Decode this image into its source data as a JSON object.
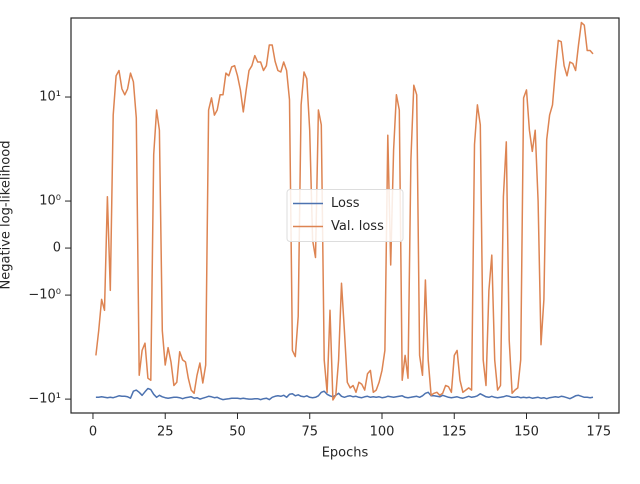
{
  "chart_data": {
    "type": "line",
    "xlabel": "Epochs",
    "ylabel": "Negative log-likelihood",
    "yscale": "symlog",
    "xlim": [
      -7.6,
      182
    ],
    "ylim": [
      -13.6,
      57.5
    ],
    "xticks": [
      0,
      25,
      50,
      75,
      100,
      125,
      150,
      175
    ],
    "yticks": [
      {
        "value": -10,
        "label": "−10¹"
      },
      {
        "value": -1,
        "label": "−10⁰"
      },
      0,
      {
        "value": 1,
        "label": "10⁰"
      },
      {
        "value": 10,
        "label": "10¹"
      }
    ],
    "legend": "center",
    "x": [
      1,
      2,
      3,
      4,
      5,
      6,
      7,
      8,
      9,
      10,
      11,
      12,
      13,
      14,
      15,
      16,
      17,
      18,
      19,
      20,
      21,
      22,
      23,
      24,
      25,
      26,
      27,
      28,
      29,
      30,
      31,
      32,
      33,
      34,
      35,
      36,
      37,
      38,
      39,
      40,
      41,
      42,
      43,
      44,
      45,
      46,
      47,
      48,
      49,
      50,
      51,
      52,
      53,
      54,
      55,
      56,
      57,
      58,
      59,
      60,
      61,
      62,
      63,
      64,
      65,
      66,
      67,
      68,
      69,
      70,
      71,
      72,
      73,
      74,
      75,
      76,
      77,
      78,
      79,
      80,
      81,
      82,
      83,
      84,
      85,
      86,
      87,
      88,
      89,
      90,
      91,
      92,
      93,
      94,
      95,
      96,
      97,
      98,
      99,
      100,
      101,
      102,
      103,
      104,
      105,
      106,
      107,
      108,
      109,
      110,
      111,
      112,
      113,
      114,
      115,
      116,
      117,
      118,
      119,
      120,
      121,
      122,
      123,
      124,
      125,
      126,
      127,
      128,
      129,
      130,
      131,
      132,
      133,
      134,
      135,
      136,
      137,
      138,
      139,
      140,
      141,
      142,
      143,
      144,
      145,
      146,
      147,
      148,
      149,
      150,
      151,
      152,
      153,
      154,
      155,
      156,
      157,
      158,
      159,
      160,
      161,
      162,
      163,
      164,
      165,
      166,
      167,
      168,
      169,
      170,
      171,
      172,
      173
    ],
    "series": [
      {
        "name": "Loss",
        "color": "#4c72b0",
        "values": [
          -9.6,
          -9.6,
          -9.5,
          -9.6,
          -9.7,
          -9.6,
          -9.7,
          -9.5,
          -9.3,
          -9.4,
          -9.4,
          -9.5,
          -9.8,
          -8.4,
          -8.2,
          -8.6,
          -9.2,
          -8.5,
          -7.9,
          -8.1,
          -9.0,
          -9.6,
          -9.2,
          -9.5,
          -9.7,
          -9.8,
          -9.7,
          -9.6,
          -9.6,
          -9.7,
          -9.9,
          -9.7,
          -9.6,
          -9.5,
          -9.8,
          -9.7,
          -10.0,
          -9.8,
          -9.6,
          -9.4,
          -9.5,
          -9.7,
          -9.6,
          -9.9,
          -10.1,
          -10.0,
          -9.9,
          -9.8,
          -9.8,
          -9.8,
          -9.9,
          -9.8,
          -9.9,
          -10.0,
          -10.0,
          -9.9,
          -9.9,
          -10.1,
          -9.9,
          -9.8,
          -10.1,
          -9.6,
          -9.4,
          -9.3,
          -9.4,
          -9.2,
          -9.6,
          -9.0,
          -8.9,
          -9.3,
          -9.1,
          -9.4,
          -9.5,
          -9.3,
          -9.6,
          -9.7,
          -9.6,
          -9.3,
          -8.6,
          -8.4,
          -9.0,
          -9.3,
          -9.5,
          -9.2,
          -8.8,
          -9.4,
          -9.6,
          -9.4,
          -9.3,
          -9.5,
          -9.4,
          -9.6,
          -9.7,
          -9.5,
          -9.4,
          -9.6,
          -9.5,
          -9.6,
          -9.5,
          -9.7,
          -9.6,
          -9.4,
          -9.5,
          -9.6,
          -9.5,
          -9.4,
          -9.3,
          -9.6,
          -9.7,
          -9.6,
          -9.5,
          -9.4,
          -9.6,
          -9.3,
          -8.8,
          -8.6,
          -9.3,
          -9.3,
          -9.4,
          -9.5,
          -9.2,
          -9.4,
          -9.6,
          -9.7,
          -9.6,
          -9.5,
          -9.7,
          -9.8,
          -9.6,
          -9.4,
          -9.6,
          -9.5,
          -9.3,
          -8.9,
          -9.2,
          -9.5,
          -9.6,
          -9.4,
          -9.6,
          -9.7,
          -9.6,
          -9.5,
          -9.3,
          -9.4,
          -9.6,
          -9.6,
          -9.5,
          -9.7,
          -9.6,
          -9.7,
          -9.6,
          -9.8,
          -9.7,
          -9.6,
          -9.8,
          -9.7,
          -9.9,
          -9.7,
          -9.6,
          -9.5,
          -9.6,
          -9.4,
          -9.5,
          -9.7,
          -9.9,
          -9.6,
          -9.3,
          -9.2,
          -9.4,
          -9.6,
          -9.6,
          -9.7,
          -9.6
        ]
      },
      {
        "name": "Val. loss",
        "color": "#dd8452",
        "values": [
          -3.8,
          -2.2,
          -1.1,
          -1.4,
          1.1,
          -0.9,
          6.7,
          16,
          18,
          12,
          10.5,
          12,
          17,
          14,
          6.3,
          -5.9,
          -3.4,
          -2.9,
          -6.3,
          -6.6,
          2.8,
          7.5,
          4.8,
          -2.2,
          -4.7,
          -3.2,
          -4.4,
          -7.4,
          -6.9,
          -3.5,
          -4.2,
          -4.4,
          -6.3,
          -8.2,
          -8.8,
          -5.9,
          -4.5,
          -7,
          -4.7,
          7.5,
          9.8,
          6.7,
          7.5,
          10.5,
          10.5,
          17,
          16,
          19.5,
          20,
          16,
          11.7,
          7.2,
          11.7,
          18,
          20,
          25,
          21.7,
          21.7,
          18,
          20,
          31.6,
          31.6,
          22,
          18,
          17.4,
          21.7,
          18,
          9.4,
          -3.4,
          -3.9,
          -1.6,
          8.4,
          17.4,
          15,
          4.8,
          0.17,
          -0.2,
          7.5,
          5.4,
          -4.2,
          -8.6,
          -1.4,
          -10.2,
          -9.2,
          -4.2,
          -0.75,
          -2.2,
          -6.9,
          -7.8,
          -7.4,
          -8.6,
          -6.9,
          -7.2,
          -8.2,
          -5.7,
          -5.3,
          -8.6,
          -8.2,
          -6.9,
          -5.3,
          -3.4,
          4.3,
          -0.36,
          3.1,
          10.5,
          7.5,
          -6.6,
          -3.8,
          -6.3,
          2.5,
          13,
          10.5,
          -3.8,
          -5.9,
          -0.68,
          -4.2,
          -9.2,
          -8.8,
          -8.6,
          -9.2,
          -8.8,
          -7.4,
          -7.6,
          -8.6,
          -3.8,
          -3.4,
          -6.6,
          -8.6,
          -8.2,
          -7.8,
          -8.2,
          3.5,
          8.4,
          5.4,
          -4.2,
          -7.4,
          -0.9,
          -0.15,
          -4.2,
          -8.2,
          -7.4,
          1.1,
          3.7,
          -2.7,
          -8.8,
          -8.2,
          -7.8,
          -4.2,
          9.8,
          11.7,
          4.8,
          3,
          4.8,
          1,
          -3,
          -1.1,
          3.9,
          6.7,
          8.4,
          18,
          35,
          34,
          20,
          16,
          21.7,
          21,
          18,
          31.6,
          52,
          49,
          28,
          28,
          26
        ]
      }
    ]
  }
}
